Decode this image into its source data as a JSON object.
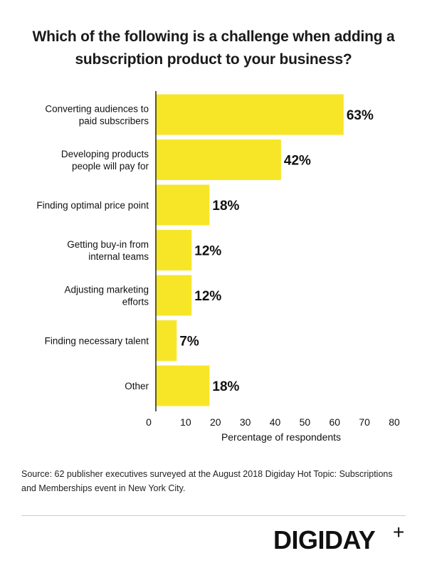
{
  "title_lines": [
    "Which of the following is a challenge when adding a",
    "subscription product to your business?"
  ],
  "chart_data": {
    "type": "bar",
    "orientation": "horizontal",
    "categories": [
      [
        "Converting audiences to",
        "paid subscribers"
      ],
      [
        "Developing products",
        "people will pay for"
      ],
      [
        "Finding optimal price point"
      ],
      [
        "Getting buy-in from",
        "internal teams"
      ],
      [
        "Adjusting marketing",
        "efforts"
      ],
      [
        "Finding necessary talent"
      ],
      [
        "Other"
      ]
    ],
    "values": [
      63,
      42,
      18,
      12,
      12,
      7,
      18
    ],
    "value_labels": [
      "63%",
      "42%",
      "18%",
      "12%",
      "12%",
      "7%",
      "18%"
    ],
    "xlabel": "Percentage of respondents",
    "xlim": [
      0,
      80
    ],
    "xticks": [
      "0",
      "10",
      "20",
      "30",
      "40",
      "50",
      "60",
      "70",
      "80"
    ],
    "grid": false,
    "colors": {
      "bar": "#f7e628",
      "axis": "#222222"
    }
  },
  "source": "Source: 62 publisher executives surveyed at the August 2018 Digiday Hot Topic: Subscriptions and Memberships event in New York City.",
  "logo": {
    "text": "DIGIDAY",
    "mark": "+"
  }
}
